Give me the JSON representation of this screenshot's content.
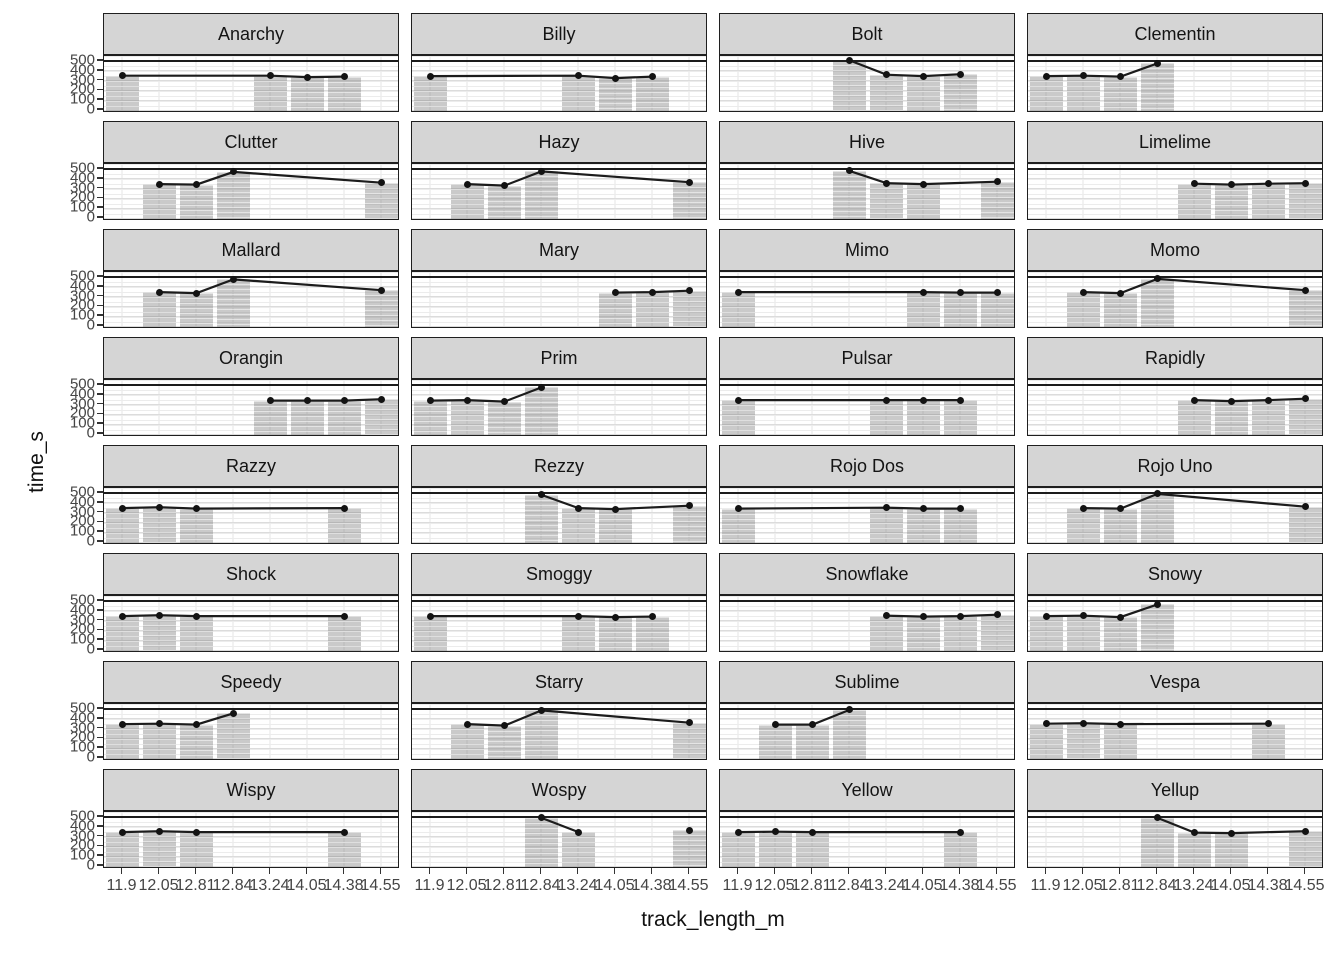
{
  "figure": {
    "y_axis_title": "time_s",
    "x_axis_title": "track_length_m"
  },
  "chart_data": {
    "type": "bar",
    "subtype": "faceted bar + line overlay (ggplot-style facet_wrap, 8 rows x 4 cols)",
    "x_categories": [
      "11.9",
      "12.05",
      "12.81",
      "12.84",
      "13.24",
      "14.05",
      "14.38",
      "14.55"
    ],
    "xlabel": "track_length_m",
    "ylabel": "time_s",
    "y_ticks": [
      0,
      100,
      200,
      300,
      400,
      500
    ],
    "ylim": [
      -30,
      550
    ],
    "reference_line_y": 500,
    "grid": "on",
    "legend": "none",
    "series": [
      {
        "name": "Anarchy",
        "values": [
          {
            "x": "11.9",
            "time_s": 350
          },
          {
            "x": "13.24",
            "time_s": 350
          },
          {
            "x": "14.05",
            "time_s": 335
          },
          {
            "x": "14.38",
            "time_s": 340
          }
        ]
      },
      {
        "name": "Billy",
        "values": [
          {
            "x": "11.9",
            "time_s": 345
          },
          {
            "x": "13.24",
            "time_s": 350
          },
          {
            "x": "14.05",
            "time_s": 325
          },
          {
            "x": "14.38",
            "time_s": 340
          }
        ]
      },
      {
        "name": "Bolt",
        "values": [
          {
            "x": "12.84",
            "time_s": 505
          },
          {
            "x": "13.24",
            "time_s": 360
          },
          {
            "x": "14.05",
            "time_s": 345
          },
          {
            "x": "14.38",
            "time_s": 365
          }
        ]
      },
      {
        "name": "Clementin",
        "values": [
          {
            "x": "11.9",
            "time_s": 345
          },
          {
            "x": "12.05",
            "time_s": 350
          },
          {
            "x": "12.81",
            "time_s": 340
          },
          {
            "x": "12.84",
            "time_s": 475
          }
        ]
      },
      {
        "name": "Clutter",
        "values": [
          {
            "x": "12.05",
            "time_s": 345
          },
          {
            "x": "12.81",
            "time_s": 340
          },
          {
            "x": "12.84",
            "time_s": 470
          },
          {
            "x": "14.55",
            "time_s": 360
          }
        ]
      },
      {
        "name": "Hazy",
        "values": [
          {
            "x": "12.05",
            "time_s": 345
          },
          {
            "x": "12.81",
            "time_s": 330
          },
          {
            "x": "12.84",
            "time_s": 475
          },
          {
            "x": "14.55",
            "time_s": 365
          }
        ]
      },
      {
        "name": "Hive",
        "values": [
          {
            "x": "12.84",
            "time_s": 480
          },
          {
            "x": "13.24",
            "time_s": 355
          },
          {
            "x": "14.05",
            "time_s": 345
          },
          {
            "x": "14.55",
            "time_s": 370
          }
        ]
      },
      {
        "name": "Limelime",
        "values": [
          {
            "x": "13.24",
            "time_s": 350
          },
          {
            "x": "14.05",
            "time_s": 340
          },
          {
            "x": "14.38",
            "time_s": 350
          },
          {
            "x": "14.55",
            "time_s": 355
          }
        ]
      },
      {
        "name": "Mallard",
        "values": [
          {
            "x": "12.05",
            "time_s": 345
          },
          {
            "x": "12.81",
            "time_s": 335
          },
          {
            "x": "12.84",
            "time_s": 475
          },
          {
            "x": "14.55",
            "time_s": 365
          }
        ]
      },
      {
        "name": "Mary",
        "values": [
          {
            "x": "14.05",
            "time_s": 340
          },
          {
            "x": "14.38",
            "time_s": 345
          },
          {
            "x": "14.55",
            "time_s": 360
          }
        ]
      },
      {
        "name": "Mimo",
        "values": [
          {
            "x": "11.9",
            "time_s": 345
          },
          {
            "x": "14.05",
            "time_s": 345
          },
          {
            "x": "14.38",
            "time_s": 340
          },
          {
            "x": "14.55",
            "time_s": 340
          }
        ]
      },
      {
        "name": "Momo",
        "values": [
          {
            "x": "12.05",
            "time_s": 345
          },
          {
            "x": "12.81",
            "time_s": 335
          },
          {
            "x": "12.84",
            "time_s": 480
          },
          {
            "x": "14.55",
            "time_s": 365
          }
        ]
      },
      {
        "name": "Orangin",
        "values": [
          {
            "x": "13.24",
            "time_s": 340
          },
          {
            "x": "14.05",
            "time_s": 340
          },
          {
            "x": "14.38",
            "time_s": 340
          },
          {
            "x": "14.55",
            "time_s": 355
          }
        ]
      },
      {
        "name": "Prim",
        "values": [
          {
            "x": "11.9",
            "time_s": 340
          },
          {
            "x": "12.05",
            "time_s": 345
          },
          {
            "x": "12.81",
            "time_s": 330
          },
          {
            "x": "12.84",
            "time_s": 475
          }
        ]
      },
      {
        "name": "Pulsar",
        "values": [
          {
            "x": "11.9",
            "time_s": 345
          },
          {
            "x": "13.24",
            "time_s": 345
          },
          {
            "x": "14.05",
            "time_s": 345
          },
          {
            "x": "14.38",
            "time_s": 345
          }
        ]
      },
      {
        "name": "Rapidly",
        "values": [
          {
            "x": "13.24",
            "time_s": 345
          },
          {
            "x": "14.05",
            "time_s": 335
          },
          {
            "x": "14.38",
            "time_s": 345
          },
          {
            "x": "14.55",
            "time_s": 360
          }
        ]
      },
      {
        "name": "Razzy",
        "values": [
          {
            "x": "11.9",
            "time_s": 345
          },
          {
            "x": "12.05",
            "time_s": 355
          },
          {
            "x": "12.81",
            "time_s": 340
          },
          {
            "x": "14.38",
            "time_s": 345
          }
        ]
      },
      {
        "name": "Rezzy",
        "values": [
          {
            "x": "12.84",
            "time_s": 480
          },
          {
            "x": "13.24",
            "time_s": 345
          },
          {
            "x": "14.05",
            "time_s": 335
          },
          {
            "x": "14.55",
            "time_s": 370
          }
        ]
      },
      {
        "name": "Rojo Dos",
        "values": [
          {
            "x": "11.9",
            "time_s": 340
          },
          {
            "x": "13.24",
            "time_s": 350
          },
          {
            "x": "14.05",
            "time_s": 340
          },
          {
            "x": "14.38",
            "time_s": 340
          }
        ]
      },
      {
        "name": "Rojo Uno",
        "values": [
          {
            "x": "12.05",
            "time_s": 345
          },
          {
            "x": "12.81",
            "time_s": 340
          },
          {
            "x": "12.84",
            "time_s": 490
          },
          {
            "x": "14.55",
            "time_s": 360
          }
        ]
      },
      {
        "name": "Shock",
        "values": [
          {
            "x": "11.9",
            "time_s": 345
          },
          {
            "x": "12.05",
            "time_s": 355
          },
          {
            "x": "12.81",
            "time_s": 345
          },
          {
            "x": "14.38",
            "time_s": 345
          }
        ]
      },
      {
        "name": "Smoggy",
        "values": [
          {
            "x": "11.9",
            "time_s": 345
          },
          {
            "x": "13.24",
            "time_s": 345
          },
          {
            "x": "14.05",
            "time_s": 335
          },
          {
            "x": "14.38",
            "time_s": 340
          }
        ]
      },
      {
        "name": "Snowflake",
        "values": [
          {
            "x": "13.24",
            "time_s": 350
          },
          {
            "x": "14.05",
            "time_s": 340
          },
          {
            "x": "14.38",
            "time_s": 345
          },
          {
            "x": "14.55",
            "time_s": 360
          }
        ]
      },
      {
        "name": "Snowy",
        "values": [
          {
            "x": "11.9",
            "time_s": 345
          },
          {
            "x": "12.05",
            "time_s": 350
          },
          {
            "x": "12.81",
            "time_s": 335
          },
          {
            "x": "12.84",
            "time_s": 465
          }
        ]
      },
      {
        "name": "Speedy",
        "values": [
          {
            "x": "11.9",
            "time_s": 345
          },
          {
            "x": "12.05",
            "time_s": 350
          },
          {
            "x": "12.81",
            "time_s": 340
          },
          {
            "x": "12.84",
            "time_s": 455
          }
        ]
      },
      {
        "name": "Starry",
        "values": [
          {
            "x": "12.05",
            "time_s": 345
          },
          {
            "x": "12.81",
            "time_s": 330
          },
          {
            "x": "12.84",
            "time_s": 485
          },
          {
            "x": "14.55",
            "time_s": 360
          }
        ]
      },
      {
        "name": "Sublime",
        "values": [
          {
            "x": "12.05",
            "time_s": 340
          },
          {
            "x": "12.81",
            "time_s": 340
          },
          {
            "x": "12.84",
            "time_s": 490
          }
        ]
      },
      {
        "name": "Vespa",
        "values": [
          {
            "x": "11.9",
            "time_s": 350
          },
          {
            "x": "12.05",
            "time_s": 355
          },
          {
            "x": "12.81",
            "time_s": 345
          },
          {
            "x": "14.38",
            "time_s": 350
          }
        ]
      },
      {
        "name": "Wispy",
        "values": [
          {
            "x": "11.9",
            "time_s": 345
          },
          {
            "x": "12.05",
            "time_s": 355
          },
          {
            "x": "12.81",
            "time_s": 345
          },
          {
            "x": "14.38",
            "time_s": 345
          }
        ]
      },
      {
        "name": "Wospy",
        "values": [
          {
            "x": "12.84",
            "time_s": 490
          },
          {
            "x": "13.24",
            "time_s": 345
          },
          {
            "x": "14.55",
            "time_s": 365
          }
        ],
        "connect": [
          [
            0,
            1
          ],
          [
            2
          ]
        ]
      },
      {
        "name": "Yellow",
        "values": [
          {
            "x": "11.9",
            "time_s": 345
          },
          {
            "x": "12.05",
            "time_s": 350
          },
          {
            "x": "12.81",
            "time_s": 345
          },
          {
            "x": "14.38",
            "time_s": 345
          }
        ]
      },
      {
        "name": "Yellup",
        "values": [
          {
            "x": "12.84",
            "time_s": 490
          },
          {
            "x": "13.24",
            "time_s": 340
          },
          {
            "x": "14.05",
            "time_s": 335
          },
          {
            "x": "14.55",
            "time_s": 355
          }
        ]
      }
    ]
  },
  "colors": {
    "strip_background": "#d5d5d5",
    "panel_border": "#1f1f1f",
    "bar_fill": "rgba(138,138,138,0.45)",
    "line_and_points": "#1c1c1c",
    "gridline": "#e4e4e4",
    "tick_label": "#454545",
    "reference_line": "#1c1c1c"
  }
}
